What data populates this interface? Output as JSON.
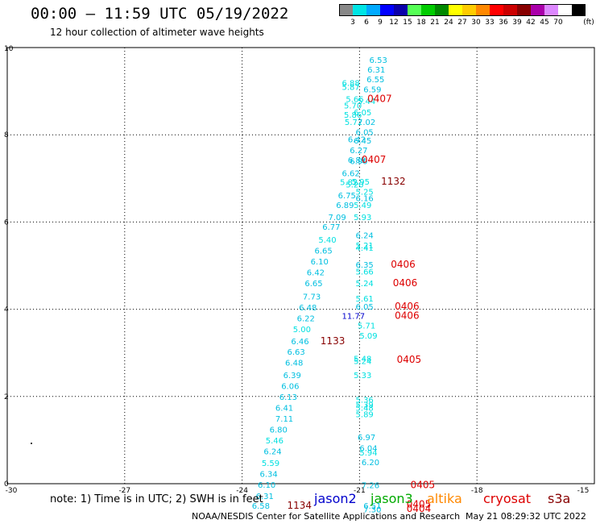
{
  "title": "00:00 – 11:59 UTC 05/19/2022",
  "subtitle": "12 hour collection of altimeter wave heights",
  "color_scale": {
    "labels": [
      "3",
      "6",
      "9",
      "12",
      "15",
      "18",
      "21",
      "24",
      "27",
      "30",
      "33",
      "36",
      "39",
      "42",
      "45",
      "70"
    ],
    "unit": "(ft)",
    "colors": [
      "#888888",
      "#00e5e5",
      "#00aaff",
      "#0000ff",
      "#0a00aa",
      "#55ff55",
      "#00cc00",
      "#008800",
      "#ffff00",
      "#ffcc00",
      "#ff8800",
      "#ff0000",
      "#cc0000",
      "#880000",
      "#aa00aa",
      "#dd88ff",
      "#ffffff",
      "#000000"
    ]
  },
  "axes": {
    "x_ticks": [
      "-30",
      "-27",
      "-24",
      "-21",
      "-18",
      "-15"
    ],
    "y_ticks": [
      "0",
      "2",
      "4",
      "6",
      "8",
      "10"
    ],
    "x_range": [
      -30,
      -15
    ],
    "y_range": [
      0,
      10
    ]
  },
  "labels": [
    {
      "lon": -20.75,
      "lat": 9.72,
      "text": "6.53",
      "color": "#00bfe0"
    },
    {
      "lon": -20.8,
      "lat": 9.5,
      "text": "6.31",
      "color": "#00bfe0"
    },
    {
      "lon": -20.82,
      "lat": 9.28,
      "text": "6.55",
      "color": "#00bfe0"
    },
    {
      "lon": -21.45,
      "lat": 9.2,
      "text": "6.88",
      "color": "#00e0e0"
    },
    {
      "lon": -21.45,
      "lat": 9.1,
      "text": "5.87",
      "color": "#00e0e0"
    },
    {
      "lon": -20.9,
      "lat": 9.05,
      "text": "6.59",
      "color": "#00bfe0"
    },
    {
      "lon": -21.35,
      "lat": 8.83,
      "text": "5.66",
      "color": "#00e0e0"
    },
    {
      "lon": -21.05,
      "lat": 8.78,
      "text": "5.44",
      "color": "#00e0e0"
    },
    {
      "lon": -21.4,
      "lat": 8.68,
      "text": "5.70",
      "color": "#00e0e0"
    },
    {
      "lon": -20.8,
      "lat": 8.83,
      "text": "0407",
      "color": "#dd0000",
      "big": true
    },
    {
      "lon": -21.15,
      "lat": 8.52,
      "text": "6.05",
      "color": "#00e0e0"
    },
    {
      "lon": -21.4,
      "lat": 8.47,
      "text": "5.86",
      "color": "#00e0e0"
    },
    {
      "lon": -21.38,
      "lat": 8.3,
      "text": "5.72",
      "color": "#00e0e0"
    },
    {
      "lon": -21.05,
      "lat": 8.3,
      "text": "7.02",
      "color": "#00bfe0"
    },
    {
      "lon": -21.1,
      "lat": 8.07,
      "text": "6.05",
      "color": "#00bfe0"
    },
    {
      "lon": -21.3,
      "lat": 7.9,
      "text": "6.42",
      "color": "#00bfe0"
    },
    {
      "lon": -21.15,
      "lat": 7.87,
      "text": "6.45",
      "color": "#00bfe0"
    },
    {
      "lon": -21.25,
      "lat": 7.65,
      "text": "6.27",
      "color": "#00bfe0"
    },
    {
      "lon": -21.25,
      "lat": 7.4,
      "text": "6.90",
      "color": "#00bfe0"
    },
    {
      "lon": -21.3,
      "lat": 7.43,
      "text": "6.89",
      "color": "#00bfe0"
    },
    {
      "lon": -20.95,
      "lat": 7.43,
      "text": "0407",
      "color": "#dd0000",
      "big": true
    },
    {
      "lon": -21.45,
      "lat": 7.13,
      "text": "6.62",
      "color": "#00bfe0"
    },
    {
      "lon": -21.5,
      "lat": 6.92,
      "text": "5.82",
      "color": "#00e0e0"
    },
    {
      "lon": -21.2,
      "lat": 6.93,
      "text": "5.95",
      "color": "#00e0e0"
    },
    {
      "lon": -21.35,
      "lat": 6.87,
      "text": "5.20",
      "color": "#00e0e0"
    },
    {
      "lon": -20.45,
      "lat": 6.93,
      "text": "1132",
      "color": "#880000",
      "big": true
    },
    {
      "lon": -21.1,
      "lat": 6.7,
      "text": "5.25",
      "color": "#00e0e0"
    },
    {
      "lon": -21.55,
      "lat": 6.62,
      "text": "6.75",
      "color": "#00bfe0"
    },
    {
      "lon": -21.1,
      "lat": 6.55,
      "text": "6.16",
      "color": "#00bfe0"
    },
    {
      "lon": -21.6,
      "lat": 6.4,
      "text": "6.89",
      "color": "#00bfe0"
    },
    {
      "lon": -21.15,
      "lat": 6.4,
      "text": "5.49",
      "color": "#00e0e0"
    },
    {
      "lon": -21.8,
      "lat": 6.12,
      "text": "7.09",
      "color": "#00bfe0"
    },
    {
      "lon": -21.15,
      "lat": 6.12,
      "text": "5.93",
      "color": "#00e0e0"
    },
    {
      "lon": -21.95,
      "lat": 5.9,
      "text": "6.77",
      "color": "#00bfe0"
    },
    {
      "lon": -21.1,
      "lat": 5.7,
      "text": "6.24",
      "color": "#00bfe0"
    },
    {
      "lon": -22.05,
      "lat": 5.6,
      "text": "5.40",
      "color": "#00e0e0"
    },
    {
      "lon": -21.1,
      "lat": 5.47,
      "text": "5.21",
      "color": "#00e0e0"
    },
    {
      "lon": -21.1,
      "lat": 5.42,
      "text": "4.41",
      "color": "#00e0e0"
    },
    {
      "lon": -22.15,
      "lat": 5.35,
      "text": "6.65",
      "color": "#00bfe0"
    },
    {
      "lon": -22.25,
      "lat": 5.1,
      "text": "6.10",
      "color": "#00bfe0"
    },
    {
      "lon": -21.1,
      "lat": 5.03,
      "text": "6.35",
      "color": "#00bfe0"
    },
    {
      "lon": -20.2,
      "lat": 5.03,
      "text": "0406",
      "color": "#dd0000",
      "big": true
    },
    {
      "lon": -21.1,
      "lat": 4.87,
      "text": "5.66",
      "color": "#00e0e0"
    },
    {
      "lon": -22.35,
      "lat": 4.85,
      "text": "6.42",
      "color": "#00bfe0"
    },
    {
      "lon": -22.4,
      "lat": 4.6,
      "text": "6.65",
      "color": "#00bfe0"
    },
    {
      "lon": -21.1,
      "lat": 4.6,
      "text": "5.24",
      "color": "#00e0e0"
    },
    {
      "lon": -20.15,
      "lat": 4.6,
      "text": "0406",
      "color": "#dd0000",
      "big": true
    },
    {
      "lon": -22.45,
      "lat": 4.3,
      "text": "7.73",
      "color": "#00bfe0"
    },
    {
      "lon": -21.1,
      "lat": 4.25,
      "text": "5.61",
      "color": "#00e0e0"
    },
    {
      "lon": -22.55,
      "lat": 4.05,
      "text": "6.48",
      "color": "#00bfe0"
    },
    {
      "lon": -21.1,
      "lat": 4.07,
      "text": "6.05",
      "color": "#00bfe0"
    },
    {
      "lon": -20.1,
      "lat": 4.07,
      "text": "0406",
      "color": "#dd0000",
      "big": true
    },
    {
      "lon": -22.6,
      "lat": 3.8,
      "text": "6.22",
      "color": "#00bfe0"
    },
    {
      "lon": -21.45,
      "lat": 3.85,
      "text": "11.77",
      "color": "#0000cc"
    },
    {
      "lon": -20.1,
      "lat": 3.85,
      "text": "0406",
      "color": "#dd0000",
      "big": true
    },
    {
      "lon": -21.05,
      "lat": 3.63,
      "text": "5.71",
      "color": "#00e0e0"
    },
    {
      "lon": -22.7,
      "lat": 3.55,
      "text": "5.00",
      "color": "#00e0e0"
    },
    {
      "lon": -21.0,
      "lat": 3.4,
      "text": "5.09",
      "color": "#00e0e0"
    },
    {
      "lon": -22.75,
      "lat": 3.27,
      "text": "6.46",
      "color": "#00bfe0"
    },
    {
      "lon": -22.0,
      "lat": 3.27,
      "text": "1133",
      "color": "#880000",
      "big": true
    },
    {
      "lon": -22.85,
      "lat": 3.03,
      "text": "6.63",
      "color": "#00bfe0"
    },
    {
      "lon": -21.15,
      "lat": 2.87,
      "text": "5.48",
      "color": "#00e0e0"
    },
    {
      "lon": -21.15,
      "lat": 2.82,
      "text": "5.24",
      "color": "#00e0e0"
    },
    {
      "lon": -20.05,
      "lat": 2.85,
      "text": "0405",
      "color": "#dd0000",
      "big": true
    },
    {
      "lon": -22.9,
      "lat": 2.78,
      "text": "6.48",
      "color": "#00bfe0"
    },
    {
      "lon": -21.15,
      "lat": 2.5,
      "text": "5.33",
      "color": "#00e0e0"
    },
    {
      "lon": -22.95,
      "lat": 2.5,
      "text": "6.39",
      "color": "#00bfe0"
    },
    {
      "lon": -23.0,
      "lat": 2.25,
      "text": "6.06",
      "color": "#00bfe0"
    },
    {
      "lon": -23.05,
      "lat": 2.0,
      "text": "6.13",
      "color": "#00bfe0"
    },
    {
      "lon": -21.1,
      "lat": 1.93,
      "text": "5.36",
      "color": "#00e0e0"
    },
    {
      "lon": -21.1,
      "lat": 1.82,
      "text": "5.39",
      "color": "#00e0e0"
    },
    {
      "lon": -21.1,
      "lat": 1.75,
      "text": "5.48",
      "color": "#00e0e0"
    },
    {
      "lon": -23.15,
      "lat": 1.75,
      "text": "6.41",
      "color": "#00bfe0"
    },
    {
      "lon": -21.1,
      "lat": 1.6,
      "text": "5.89",
      "color": "#00e0e0"
    },
    {
      "lon": -23.15,
      "lat": 1.5,
      "text": "7.11",
      "color": "#00bfe0"
    },
    {
      "lon": -23.3,
      "lat": 1.25,
      "text": "6.80",
      "color": "#00bfe0"
    },
    {
      "lon": -21.05,
      "lat": 1.07,
      "text": "6.97",
      "color": "#00bfe0"
    },
    {
      "lon": -23.4,
      "lat": 1.0,
      "text": "5.46",
      "color": "#00e0e0"
    },
    {
      "lon": -21.0,
      "lat": 0.82,
      "text": "6.04",
      "color": "#00bfe0"
    },
    {
      "lon": -23.45,
      "lat": 0.75,
      "text": "6.24",
      "color": "#00bfe0"
    },
    {
      "lon": -21.0,
      "lat": 0.72,
      "text": "5.94",
      "color": "#00e0e0"
    },
    {
      "lon": -23.5,
      "lat": 0.48,
      "text": "5.59",
      "color": "#00e0e0"
    },
    {
      "lon": -20.95,
      "lat": 0.5,
      "text": "6.20",
      "color": "#00bfe0"
    },
    {
      "lon": -23.55,
      "lat": 0.23,
      "text": "6.34",
      "color": "#00bfe0"
    },
    {
      "lon": -23.6,
      "lat": -0.02,
      "text": "6.10",
      "color": "#00bfe0"
    },
    {
      "lon": -20.95,
      "lat": -0.03,
      "text": "7.26",
      "color": "#00bfe0"
    },
    {
      "lon": -19.7,
      "lat": -0.03,
      "text": "0405",
      "color": "#dd0000",
      "big": true
    },
    {
      "lon": -23.65,
      "lat": -0.28,
      "text": "6.31",
      "color": "#00bfe0"
    },
    {
      "lon": -23.75,
      "lat": -0.5,
      "text": "6.58",
      "color": "#00bfe0"
    },
    {
      "lon": -22.85,
      "lat": -0.5,
      "text": "1134",
      "color": "#880000",
      "big": true
    },
    {
      "lon": -20.9,
      "lat": -0.5,
      "text": "6.51",
      "color": "#00bfe0"
    },
    {
      "lon": -20.9,
      "lat": -0.58,
      "text": "7.30",
      "color": "#00bfe0"
    },
    {
      "lon": -19.8,
      "lat": -0.47,
      "text": "0405",
      "color": "#dd0000",
      "big": true
    },
    {
      "lon": -19.8,
      "lat": -0.57,
      "text": "0404",
      "color": "#dd0000",
      "big": true
    }
  ],
  "note": "note:  1) Time is in UTC;  2) SWH is in feet",
  "satellites": [
    {
      "name": "jason2",
      "color": "#0000cc"
    },
    {
      "name": "jason3",
      "color": "#00aa00"
    },
    {
      "name": "altika",
      "color": "#ff8800"
    },
    {
      "name": "cryosat",
      "color": "#dd0000"
    },
    {
      "name": "s3a",
      "color": "#880000"
    }
  ],
  "footer": "NOAA/NESDIS Center for Satellite Applications and Research",
  "footer_date": "May 21 08:29:32 UTC 2022"
}
